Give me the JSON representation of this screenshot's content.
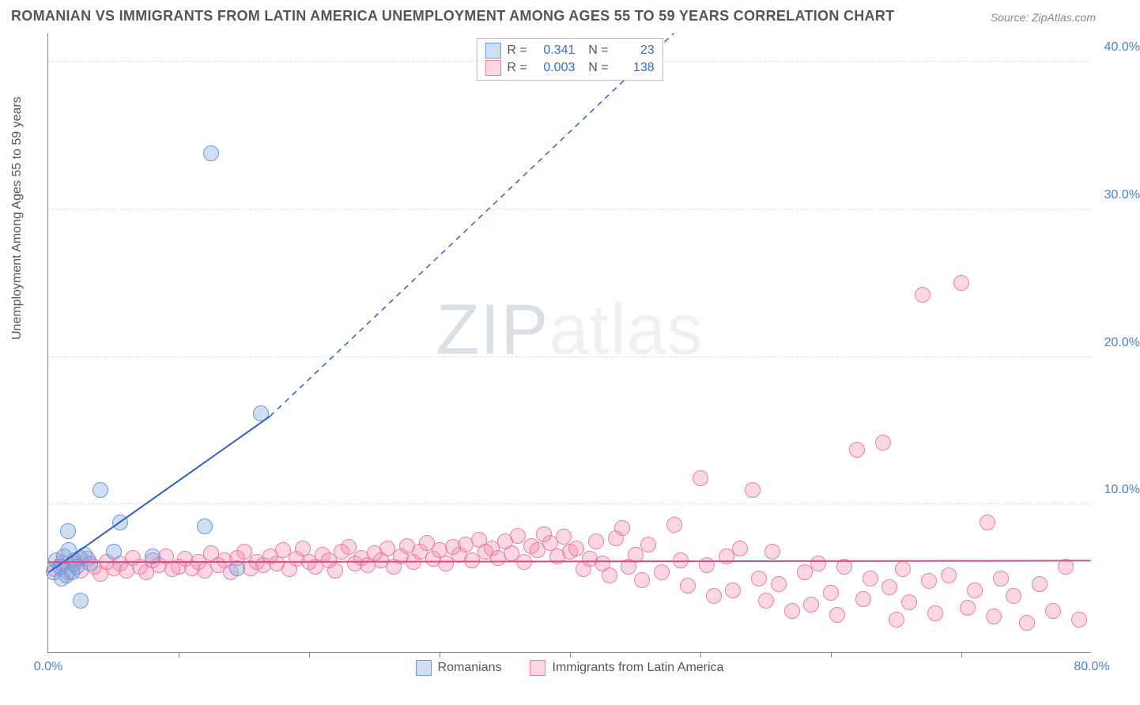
{
  "title": "ROMANIAN VS IMMIGRANTS FROM LATIN AMERICA UNEMPLOYMENT AMONG AGES 55 TO 59 YEARS CORRELATION CHART",
  "source": "Source: ZipAtlas.com",
  "watermark": "ZIPatlas",
  "y_axis_title": "Unemployment Among Ages 55 to 59 years",
  "chart": {
    "type": "scatter",
    "background_color": "#ffffff",
    "grid_color": "#dddddd",
    "axis_color": "#888888",
    "xlim": [
      0,
      80
    ],
    "ylim": [
      0,
      42
    ],
    "x_ticks": [
      0,
      10,
      20,
      30,
      40,
      50,
      60,
      70,
      80
    ],
    "x_tick_labels": {
      "0": "0.0%",
      "80": "80.0%"
    },
    "y_ticks": [
      10,
      20,
      30,
      40
    ],
    "y_tick_labels": {
      "10": "10.0%",
      "20": "20.0%",
      "30": "30.0%",
      "40": "40.0%"
    },
    "marker_radius": 10,
    "series": [
      {
        "name": "Romanians",
        "fill": "rgba(120,160,220,0.35)",
        "stroke": "#6a99d8",
        "R": "0.341",
        "N": "23",
        "trend": {
          "x1": 0,
          "y1": 5.4,
          "x2": 17,
          "y2": 16.0,
          "dash_to_x": 48,
          "dash_to_y": 42,
          "color": "#2b5fd0",
          "width": 2
        },
        "points": [
          [
            0.4,
            5.4
          ],
          [
            0.6,
            6.2
          ],
          [
            0.9,
            5.8
          ],
          [
            1.0,
            5.0
          ],
          [
            1.2,
            6.5
          ],
          [
            1.4,
            5.2
          ],
          [
            1.6,
            6.9
          ],
          [
            1.8,
            5.4
          ],
          [
            2.0,
            6.0
          ],
          [
            2.2,
            5.8
          ],
          [
            2.4,
            6.4
          ],
          [
            2.8,
            6.6
          ],
          [
            2.5,
            3.5
          ],
          [
            1.5,
            8.2
          ],
          [
            3.2,
            6.0
          ],
          [
            4.0,
            11.0
          ],
          [
            5.0,
            6.8
          ],
          [
            5.5,
            8.8
          ],
          [
            8.0,
            6.5
          ],
          [
            12.0,
            8.5
          ],
          [
            12.5,
            33.8
          ],
          [
            14.5,
            5.7
          ],
          [
            16.3,
            16.2
          ]
        ]
      },
      {
        "name": "Immigrants from Latin America",
        "fill": "rgba(240,140,170,0.35)",
        "stroke": "#e97fa4",
        "R": "0.003",
        "N": "138",
        "trend": {
          "x1": 0,
          "y1": 6.1,
          "x2": 80,
          "y2": 6.2,
          "color": "#d84c86",
          "width": 2
        },
        "points": [
          [
            0.5,
            5.6
          ],
          [
            1.0,
            6.0
          ],
          [
            1.5,
            5.4
          ],
          [
            2.0,
            6.2
          ],
          [
            2.5,
            5.5
          ],
          [
            3.0,
            6.3
          ],
          [
            3.5,
            5.8
          ],
          [
            4.0,
            5.3
          ],
          [
            4.5,
            6.1
          ],
          [
            5.0,
            5.7
          ],
          [
            5.5,
            6.0
          ],
          [
            6.0,
            5.5
          ],
          [
            6.5,
            6.4
          ],
          [
            7.0,
            5.8
          ],
          [
            7.5,
            5.4
          ],
          [
            8.0,
            6.2
          ],
          [
            8.5,
            5.9
          ],
          [
            9.0,
            6.5
          ],
          [
            9.5,
            5.6
          ],
          [
            10.0,
            5.8
          ],
          [
            10.5,
            6.3
          ],
          [
            11.0,
            5.7
          ],
          [
            11.5,
            6.1
          ],
          [
            12.0,
            5.5
          ],
          [
            12.5,
            6.7
          ],
          [
            13.0,
            5.9
          ],
          [
            13.5,
            6.2
          ],
          [
            14.0,
            5.4
          ],
          [
            14.5,
            6.4
          ],
          [
            15.0,
            6.8
          ],
          [
            15.5,
            5.7
          ],
          [
            16.0,
            6.1
          ],
          [
            16.5,
            5.9
          ],
          [
            17.0,
            6.5
          ],
          [
            17.5,
            6.0
          ],
          [
            18.0,
            6.9
          ],
          [
            18.5,
            5.6
          ],
          [
            19.0,
            6.3
          ],
          [
            19.5,
            7.0
          ],
          [
            20.0,
            6.1
          ],
          [
            20.5,
            5.8
          ],
          [
            21.0,
            6.6
          ],
          [
            21.5,
            6.2
          ],
          [
            22.0,
            5.5
          ],
          [
            22.5,
            6.8
          ],
          [
            23.0,
            7.1
          ],
          [
            23.5,
            6.0
          ],
          [
            24.0,
            6.4
          ],
          [
            24.5,
            5.9
          ],
          [
            25.0,
            6.7
          ],
          [
            25.5,
            6.2
          ],
          [
            26.0,
            7.0
          ],
          [
            26.5,
            5.8
          ],
          [
            27.0,
            6.5
          ],
          [
            27.5,
            7.2
          ],
          [
            28.0,
            6.1
          ],
          [
            28.5,
            6.8
          ],
          [
            29.0,
            7.4
          ],
          [
            29.5,
            6.3
          ],
          [
            30.0,
            6.9
          ],
          [
            30.5,
            6.0
          ],
          [
            31.0,
            7.1
          ],
          [
            31.5,
            6.6
          ],
          [
            32.0,
            7.3
          ],
          [
            32.5,
            6.2
          ],
          [
            33.0,
            7.6
          ],
          [
            33.5,
            6.8
          ],
          [
            34.0,
            7.0
          ],
          [
            34.5,
            6.4
          ],
          [
            35.0,
            7.5
          ],
          [
            35.5,
            6.7
          ],
          [
            36.0,
            7.9
          ],
          [
            36.5,
            6.1
          ],
          [
            37.0,
            7.2
          ],
          [
            37.5,
            6.9
          ],
          [
            38.0,
            8.0
          ],
          [
            38.5,
            7.4
          ],
          [
            39.0,
            6.5
          ],
          [
            39.5,
            7.8
          ],
          [
            40.0,
            6.8
          ],
          [
            40.5,
            7.0
          ],
          [
            41.0,
            5.6
          ],
          [
            41.5,
            6.3
          ],
          [
            42.0,
            7.5
          ],
          [
            42.5,
            6.0
          ],
          [
            43.0,
            5.2
          ],
          [
            43.5,
            7.7
          ],
          [
            44.0,
            8.4
          ],
          [
            44.5,
            5.8
          ],
          [
            45.0,
            6.6
          ],
          [
            45.5,
            4.9
          ],
          [
            46.0,
            7.3
          ],
          [
            47.0,
            5.4
          ],
          [
            48.0,
            8.6
          ],
          [
            48.5,
            6.2
          ],
          [
            49.0,
            4.5
          ],
          [
            50.0,
            11.8
          ],
          [
            50.5,
            5.9
          ],
          [
            51.0,
            3.8
          ],
          [
            52.0,
            6.5
          ],
          [
            52.5,
            4.2
          ],
          [
            53.0,
            7.0
          ],
          [
            54.0,
            11.0
          ],
          [
            54.5,
            5.0
          ],
          [
            55.0,
            3.5
          ],
          [
            55.5,
            6.8
          ],
          [
            56.0,
            4.6
          ],
          [
            57.0,
            2.8
          ],
          [
            58.0,
            5.4
          ],
          [
            58.5,
            3.2
          ],
          [
            59.0,
            6.0
          ],
          [
            60.0,
            4.0
          ],
          [
            60.5,
            2.5
          ],
          [
            61.0,
            5.8
          ],
          [
            62.0,
            13.7
          ],
          [
            62.5,
            3.6
          ],
          [
            63.0,
            5.0
          ],
          [
            64.0,
            14.2
          ],
          [
            64.5,
            4.4
          ],
          [
            65.0,
            2.2
          ],
          [
            65.5,
            5.6
          ],
          [
            66.0,
            3.4
          ],
          [
            67.0,
            24.2
          ],
          [
            67.5,
            4.8
          ],
          [
            68.0,
            2.6
          ],
          [
            69.0,
            5.2
          ],
          [
            70.0,
            25.0
          ],
          [
            70.5,
            3.0
          ],
          [
            71.0,
            4.2
          ],
          [
            72.0,
            8.8
          ],
          [
            72.5,
            2.4
          ],
          [
            73.0,
            5.0
          ],
          [
            74.0,
            3.8
          ],
          [
            75.0,
            2.0
          ],
          [
            76.0,
            4.6
          ],
          [
            77.0,
            2.8
          ],
          [
            78.0,
            5.8
          ],
          [
            79.0,
            2.2
          ]
        ]
      }
    ]
  }
}
